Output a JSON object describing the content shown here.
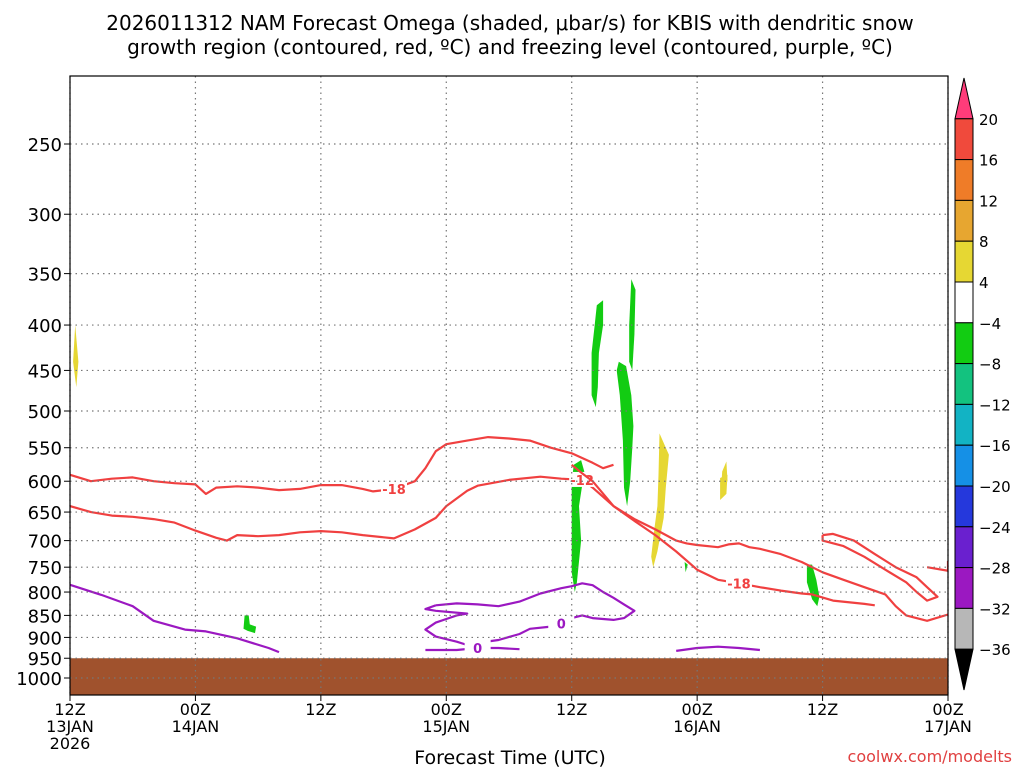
{
  "chart_data": {
    "type": "heatmap",
    "title_line1": "2026011312 NAM Forecast Omega (shaded, μbar/s) for KBIS with dendritic snow",
    "title_line2": "growth region (contoured, red, ºC) and freezing level (contoured, purple, ºC)",
    "xlabel": "Forecast Time (UTC)",
    "ylabel": "",
    "credit": "coolwx.com/modelts",
    "y_axis": {
      "scale": "log",
      "range_hpa": [
        1050,
        200
      ],
      "ticks": [
        250,
        300,
        350,
        400,
        450,
        500,
        550,
        600,
        650,
        700,
        750,
        800,
        850,
        900,
        950,
        1000
      ]
    },
    "x_axis": {
      "range_hours": [
        0,
        84
      ],
      "ticks": [
        {
          "h": 0,
          "line1": "12Z",
          "line2": "13JAN",
          "line3": "2026"
        },
        {
          "h": 12,
          "line1": "00Z",
          "line2": "14JAN",
          "line3": ""
        },
        {
          "h": 24,
          "line1": "12Z",
          "line2": "",
          "line3": ""
        },
        {
          "h": 36,
          "line1": "00Z",
          "line2": "15JAN",
          "line3": ""
        },
        {
          "h": 48,
          "line1": "12Z",
          "line2": "",
          "line3": ""
        },
        {
          "h": 60,
          "line1": "00Z",
          "line2": "16JAN",
          "line3": ""
        },
        {
          "h": 72,
          "line1": "12Z",
          "line2": "",
          "line3": ""
        },
        {
          "h": 84,
          "line1": "00Z",
          "line2": "17JAN",
          "line3": ""
        }
      ]
    },
    "grid": true,
    "colorbar": {
      "placement": "right",
      "labels": [
        "20",
        "16",
        "12",
        "8",
        "4",
        "−4",
        "−8",
        "−12",
        "−16",
        "−20",
        "−24",
        "−28",
        "−32",
        "−36"
      ],
      "bins": [
        {
          "color": "#ff3c7a"
        },
        {
          "color": "#f04a3c"
        },
        {
          "color": "#ef7c28"
        },
        {
          "color": "#e7a630"
        },
        {
          "color": "#e6d733"
        },
        {
          "color": "#ffffff"
        },
        {
          "color": "#12cc12"
        },
        {
          "color": "#13c27f"
        },
        {
          "color": "#12b3c4"
        },
        {
          "color": "#1590e6"
        },
        {
          "color": "#2538dc"
        },
        {
          "color": "#6a20cf"
        },
        {
          "color": "#9b18c1"
        },
        {
          "color": "#b7b7b7"
        },
        {
          "color": "#000000"
        }
      ]
    },
    "terrain_color": "#a0522d",
    "surface_pressure_hpa": 950,
    "omega_color": "#12cc12",
    "contour_colors": {
      "dgz": "#f04040",
      "freezing": "#9b18c1"
    },
    "omega_shaded": [
      {
        "sign": "positive",
        "points": [
          [
            0.5,
            400
          ],
          [
            0.8,
            440
          ],
          [
            0.6,
            470
          ],
          [
            0.3,
            440
          ]
        ]
      },
      {
        "sign": "negative",
        "points": [
          [
            16.7,
            850
          ],
          [
            17.1,
            850
          ],
          [
            17.2,
            870
          ],
          [
            17.8,
            875
          ],
          [
            17.7,
            890
          ],
          [
            17.0,
            885
          ],
          [
            16.6,
            880
          ]
        ]
      },
      {
        "sign": "negative",
        "points": [
          [
            48.2,
            575
          ],
          [
            48.9,
            568
          ],
          [
            49.2,
            585
          ],
          [
            48.7,
            640
          ],
          [
            48.9,
            700
          ],
          [
            48.5,
            780
          ],
          [
            48.3,
            800
          ],
          [
            48.0,
            760
          ],
          [
            48.0,
            660
          ],
          [
            48.0,
            600
          ]
        ]
      },
      {
        "sign": "negative",
        "points": [
          [
            50.4,
            380
          ],
          [
            51.0,
            375
          ],
          [
            51.0,
            400
          ],
          [
            50.6,
            430
          ],
          [
            50.5,
            470
          ],
          [
            50.3,
            495
          ],
          [
            49.9,
            480
          ],
          [
            49.9,
            430
          ],
          [
            50.2,
            400
          ]
        ]
      },
      {
        "sign": "negative",
        "points": [
          [
            53.7,
            355
          ],
          [
            54.1,
            365
          ],
          [
            54.0,
            410
          ],
          [
            53.8,
            450
          ],
          [
            53.5,
            440
          ],
          [
            53.5,
            400
          ]
        ]
      },
      {
        "sign": "negative",
        "points": [
          [
            52.5,
            440
          ],
          [
            53.2,
            445
          ],
          [
            53.7,
            480
          ],
          [
            53.9,
            520
          ],
          [
            53.8,
            550
          ],
          [
            53.6,
            600
          ],
          [
            53.3,
            640
          ],
          [
            53.0,
            610
          ],
          [
            52.9,
            540
          ],
          [
            52.6,
            480
          ],
          [
            52.3,
            450
          ]
        ]
      },
      {
        "sign": "positive",
        "points": [
          [
            56.4,
            530
          ],
          [
            57.3,
            560
          ],
          [
            57.0,
            610
          ],
          [
            56.8,
            660
          ],
          [
            56.2,
            720
          ],
          [
            55.8,
            750
          ],
          [
            55.6,
            730
          ],
          [
            55.9,
            680
          ],
          [
            56.2,
            640
          ],
          [
            56.3,
            590
          ]
        ]
      },
      {
        "sign": "positive",
        "points": [
          [
            62.2,
            595
          ],
          [
            62.9,
            590
          ],
          [
            62.8,
            620
          ],
          [
            62.2,
            630
          ]
        ]
      },
      {
        "sign": "positive",
        "points": [
          [
            62.4,
            585
          ],
          [
            62.8,
            570
          ],
          [
            62.9,
            600
          ],
          [
            62.3,
            610
          ]
        ]
      },
      {
        "sign": "negative",
        "points": [
          [
            58.8,
            740
          ],
          [
            59.1,
            745
          ],
          [
            58.9,
            760
          ]
        ]
      },
      {
        "sign": "negative",
        "points": [
          [
            70.5,
            745
          ],
          [
            71.0,
            745
          ],
          [
            71.4,
            775
          ],
          [
            71.7,
            810
          ],
          [
            71.5,
            830
          ],
          [
            71.0,
            815
          ],
          [
            70.5,
            780
          ]
        ]
      }
    ],
    "dgz_contours": [
      {
        "label": "-18",
        "points": [
          [
            0,
            590
          ],
          [
            2,
            600
          ],
          [
            4,
            596
          ],
          [
            6,
            594
          ],
          [
            8,
            600
          ],
          [
            10,
            603
          ],
          [
            12,
            605
          ],
          [
            13,
            620
          ],
          [
            14,
            610
          ],
          [
            16,
            608
          ],
          [
            18,
            610
          ],
          [
            20,
            614
          ],
          [
            22,
            612
          ],
          [
            24,
            606
          ],
          [
            26,
            606
          ],
          [
            28,
            612
          ],
          [
            29,
            616
          ],
          [
            31,
            612
          ],
          [
            33,
            600
          ],
          [
            34,
            580
          ],
          [
            35,
            555
          ],
          [
            36,
            545
          ],
          [
            38,
            540
          ],
          [
            40,
            535
          ],
          [
            42,
            537
          ],
          [
            44,
            540
          ],
          [
            46,
            550
          ],
          [
            48,
            558
          ],
          [
            50,
            572
          ],
          [
            51,
            580
          ],
          [
            52,
            575
          ]
        ]
      },
      {
        "label": "-12",
        "points": [
          [
            0,
            640
          ],
          [
            2,
            650
          ],
          [
            4,
            656
          ],
          [
            6,
            658
          ],
          [
            8,
            662
          ],
          [
            10,
            668
          ],
          [
            12,
            682
          ],
          [
            14,
            695
          ],
          [
            15,
            700
          ],
          [
            16,
            690
          ],
          [
            18,
            692
          ],
          [
            20,
            690
          ],
          [
            22,
            685
          ],
          [
            24,
            683
          ],
          [
            26,
            685
          ],
          [
            28,
            690
          ],
          [
            30,
            694
          ],
          [
            31,
            696
          ],
          [
            33,
            680
          ],
          [
            35,
            660
          ],
          [
            36,
            640
          ],
          [
            38,
            615
          ],
          [
            39,
            607
          ],
          [
            42,
            598
          ],
          [
            45,
            593
          ],
          [
            47,
            596
          ],
          [
            49,
            598
          ],
          [
            50,
            610
          ],
          [
            52,
            640
          ],
          [
            54,
            662
          ],
          [
            56,
            680
          ],
          [
            58,
            700
          ],
          [
            59,
            705
          ],
          [
            60,
            708
          ],
          [
            62,
            712
          ],
          [
            63,
            707
          ],
          [
            64,
            705
          ],
          [
            65,
            712
          ],
          [
            66,
            715
          ],
          [
            68,
            725
          ],
          [
            70,
            740
          ],
          [
            72,
            760
          ],
          [
            74,
            775
          ],
          [
            76,
            790
          ],
          [
            78,
            805
          ],
          [
            79,
            830
          ],
          [
            80,
            850
          ],
          [
            82,
            862
          ],
          [
            84,
            848
          ]
        ]
      },
      {
        "label": "-18",
        "points": [
          [
            48,
            575
          ],
          [
            49,
            588
          ],
          [
            50,
            600
          ],
          [
            52,
            640
          ],
          [
            54,
            665
          ],
          [
            56,
            690
          ],
          [
            58,
            720
          ],
          [
            60,
            755
          ],
          [
            62,
            775
          ],
          [
            64,
            782
          ],
          [
            66,
            790
          ],
          [
            68,
            797
          ],
          [
            70,
            803
          ],
          [
            71,
            805
          ],
          [
            73,
            818
          ],
          [
            76,
            825
          ],
          [
            77,
            828
          ]
        ]
      },
      {
        "label": "",
        "points": [
          [
            72,
            690
          ],
          [
            73,
            688
          ],
          [
            75,
            700
          ],
          [
            77,
            725
          ],
          [
            79,
            750
          ],
          [
            81,
            770
          ],
          [
            82,
            790
          ],
          [
            83,
            810
          ],
          [
            82,
            818
          ],
          [
            81,
            800
          ],
          [
            80,
            780
          ],
          [
            78,
            755
          ],
          [
            76,
            730
          ],
          [
            74,
            710
          ],
          [
            72,
            700
          ],
          [
            72,
            690
          ]
        ]
      },
      {
        "label": "",
        "points": [
          [
            82,
            750
          ],
          [
            84,
            757
          ],
          [
            84,
            738
          ]
        ]
      }
    ],
    "freezing_contours": [
      {
        "label": "",
        "points": [
          [
            0,
            785
          ],
          [
            3,
            806
          ],
          [
            6,
            830
          ],
          [
            8,
            862
          ],
          [
            11,
            882
          ],
          [
            13,
            886
          ],
          [
            16,
            902
          ],
          [
            19,
            925
          ],
          [
            20,
            935
          ]
        ]
      },
      {
        "label": "0",
        "points": [
          [
            35,
            828
          ],
          [
            37,
            824
          ],
          [
            39,
            826
          ],
          [
            41,
            830
          ],
          [
            43,
            820
          ],
          [
            45,
            803
          ],
          [
            47,
            792
          ],
          [
            48,
            788
          ],
          [
            49,
            782
          ],
          [
            50,
            786
          ],
          [
            51,
            800
          ],
          [
            52,
            812
          ],
          [
            53,
            826
          ],
          [
            54,
            840
          ],
          [
            53,
            856
          ],
          [
            52,
            860
          ],
          [
            51,
            858
          ],
          [
            50,
            856
          ],
          [
            49,
            850
          ],
          [
            48,
            856
          ],
          [
            47,
            868
          ],
          [
            46,
            875
          ],
          [
            44,
            880
          ],
          [
            43,
            892
          ],
          [
            41,
            906
          ],
          [
            39,
            913
          ],
          [
            38,
            918
          ],
          [
            37,
            910
          ],
          [
            35,
            898
          ],
          [
            34,
            882
          ],
          [
            35,
            866
          ],
          [
            36,
            858
          ],
          [
            37,
            850
          ],
          [
            38,
            846
          ],
          [
            35,
            840
          ],
          [
            34,
            836
          ],
          [
            35,
            828
          ]
        ]
      },
      {
        "label": "0",
        "points": [
          [
            34,
            930
          ],
          [
            37,
            930
          ],
          [
            39,
            925
          ],
          [
            41,
            925
          ],
          [
            43,
            928
          ]
        ]
      },
      {
        "label": "",
        "points": [
          [
            58,
            932
          ],
          [
            60,
            925
          ],
          [
            62,
            922
          ],
          [
            64,
            925
          ],
          [
            66,
            930
          ]
        ]
      }
    ]
  }
}
